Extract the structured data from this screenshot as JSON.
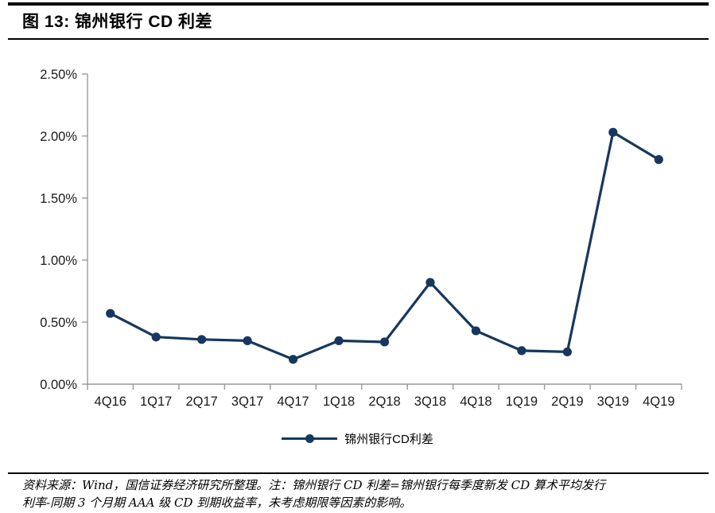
{
  "page": {
    "title": "图 13: 锦州银行 CD 利差"
  },
  "legend": {
    "label": "锦州银行CD利差"
  },
  "footer": {
    "line1": "资料来源：Wind，国信证券经济研究所整理。注：锦州银行 CD 利差=锦州银行每季度新发 CD 算术平均发行",
    "line2": "利率-同期 3 个月期 AAA 级 CD 到期收益率，未考虑期限等因素的影响。"
  },
  "colors": {
    "line": "#17375E",
    "axis": "#999999",
    "tick_text": "#1A1A1A"
  },
  "chart_data": {
    "type": "line",
    "title": "锦州银行 CD 利差",
    "categories": [
      "4Q16",
      "1Q17",
      "2Q17",
      "3Q17",
      "4Q17",
      "1Q18",
      "2Q18",
      "3Q18",
      "4Q18",
      "1Q19",
      "2Q19",
      "3Q19",
      "4Q19"
    ],
    "series": [
      {
        "name": "锦州银行CD利差",
        "values": [
          0.57,
          0.38,
          0.36,
          0.35,
          0.2,
          0.35,
          0.34,
          0.82,
          0.43,
          0.27,
          0.26,
          2.03,
          1.81
        ]
      }
    ],
    "unit": "%",
    "xlabel": "",
    "ylabel": "",
    "ylim": [
      0,
      2.5
    ],
    "y_ticks": [
      0,
      0.5,
      1.0,
      1.5,
      2.0,
      2.5
    ],
    "y_tick_labels": [
      "0.00%",
      "0.50%",
      "1.00%",
      "1.50%",
      "2.00%",
      "2.50%"
    ],
    "grid": false,
    "marker": "circle",
    "legend_position": "bottom"
  }
}
